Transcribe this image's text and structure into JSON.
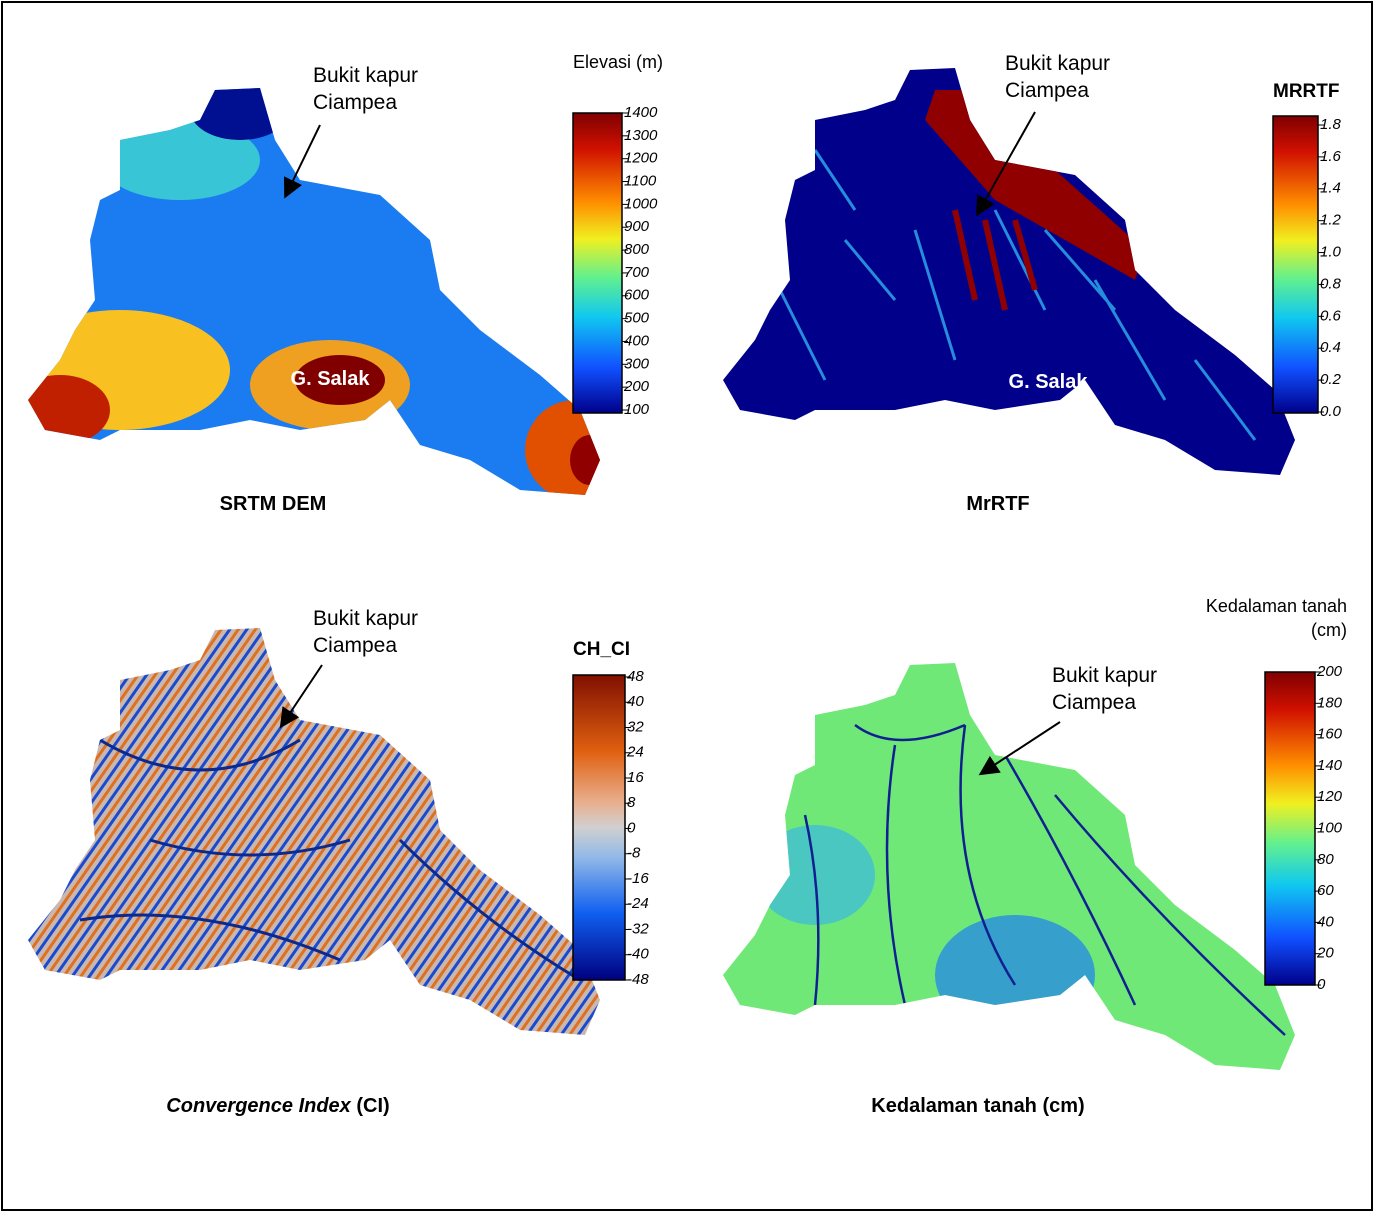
{
  "panels": [
    {
      "caption": "SRTM DEM",
      "legend_title": [
        "Elevasi (m)"
      ],
      "legend_ticks": [
        "1400",
        "1300",
        "1200",
        "1100",
        "1000",
        "900",
        "800",
        "700",
        "600",
        "500",
        "400",
        "300",
        "200",
        "100"
      ],
      "annotation": [
        "Bukit kapur",
        "Ciampea"
      ],
      "peak_label": "G. Salak"
    },
    {
      "caption": "MrRTF",
      "legend_title": [
        "MRRTF"
      ],
      "legend_ticks": [
        "1.8",
        "1.6",
        "1.4",
        "1.2",
        "1.0",
        "0.8",
        "0.6",
        "0.4",
        "0.2",
        "0.0"
      ],
      "annotation": [
        "Bukit kapur",
        "Ciampea"
      ],
      "peak_label": "G. Salak"
    },
    {
      "caption_italic": "Convergence Index",
      "caption": " (CI)",
      "legend_title": [
        "CH_CI"
      ],
      "legend_ticks": [
        "48",
        "40",
        "32",
        "24",
        "16",
        "8",
        "0",
        "-8",
        "-16",
        "-24",
        "-32",
        "-40",
        "-48"
      ],
      "annotation": [
        "Bukit kapur",
        "Ciampea"
      ]
    },
    {
      "caption": "Kedalaman tanah (cm)",
      "legend_title": [
        "Kedalaman tanah",
        "(cm)"
      ],
      "legend_ticks": [
        "200",
        "180",
        "160",
        "140",
        "120",
        "100",
        "80",
        "60",
        "40",
        "20",
        "0"
      ],
      "annotation": [
        "Bukit kapur",
        "Ciampea"
      ]
    }
  ]
}
